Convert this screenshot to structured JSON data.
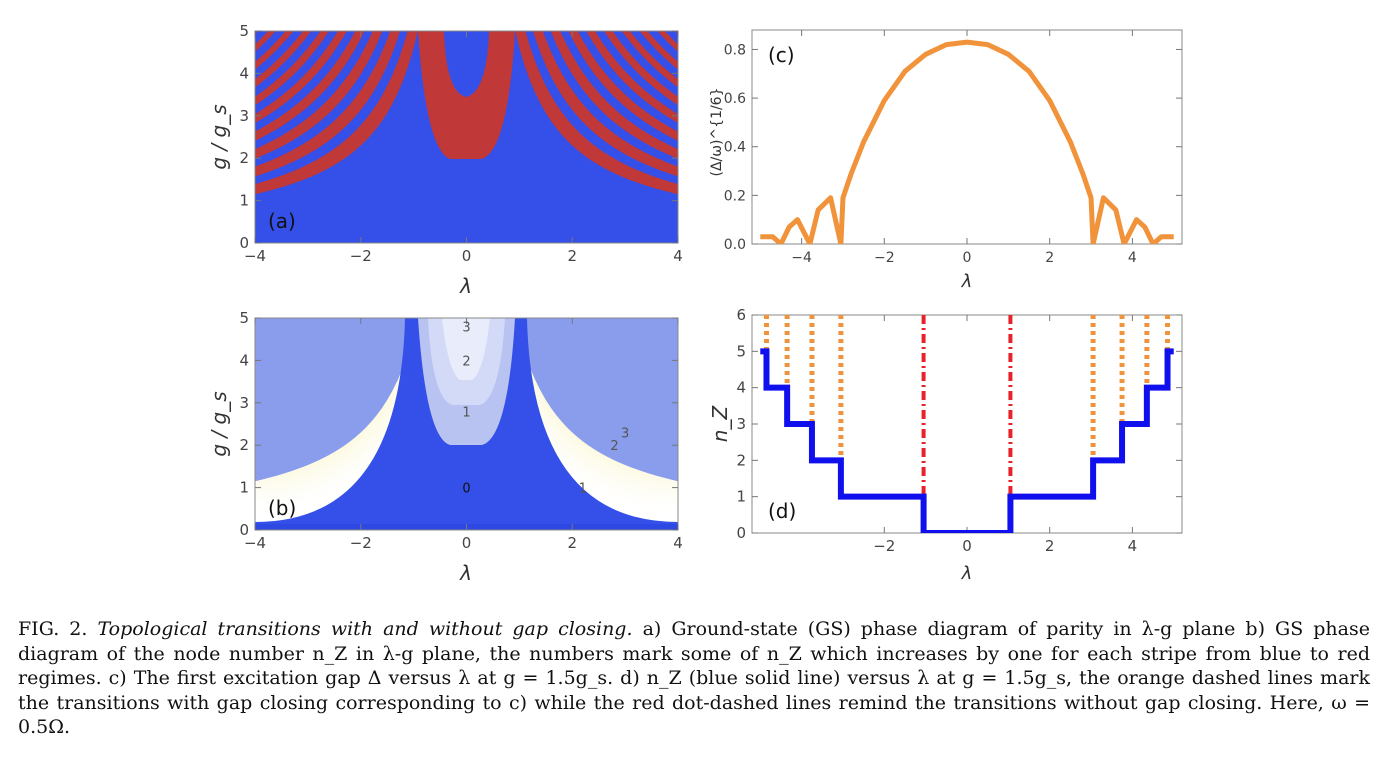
{
  "figure": {
    "panels": {
      "a": {
        "label": "(a)",
        "xlabel": "λ",
        "ylabel": "g / g_s",
        "xticks": [
          "−4",
          "−2",
          "0",
          "2",
          "4"
        ],
        "yticks": [
          "0",
          "1",
          "2",
          "3",
          "4",
          "5"
        ]
      },
      "b": {
        "label": "(b)",
        "xlabel": "λ",
        "ylabel": "g / g_s",
        "xticks": [
          "−4",
          "−2",
          "0",
          "2",
          "4"
        ],
        "yticks": [
          "0",
          "1",
          "2",
          "3",
          "4",
          "5"
        ],
        "contour_labels": [
          "3",
          "2",
          "1",
          "0",
          "1",
          "2",
          "3"
        ]
      },
      "c": {
        "label": "(c)",
        "xlabel": "λ",
        "ylabel": "(Δ/ω)^{1/6}",
        "xticks": [
          "−4",
          "−2",
          "0",
          "2",
          "4"
        ],
        "yticks": [
          "0.0",
          "0.2",
          "0.4",
          "0.6",
          "0.8"
        ]
      },
      "d": {
        "label": "(d)",
        "xlabel": "λ",
        "ylabel": "n_Z",
        "xticks": [
          "−2",
          "0",
          "2",
          "4"
        ],
        "yticks": [
          "0",
          "1",
          "2",
          "3",
          "4",
          "5",
          "6"
        ]
      }
    },
    "colors": {
      "parity_blue": "#3550e8",
      "parity_red": "#c03838",
      "gap_orange": "#f0933a",
      "nz_blue": "#1010ee",
      "red_dotdash": "#e8222a"
    }
  },
  "chart_data": [
    {
      "type": "heatmap",
      "panel": "a",
      "xlim": [
        -4,
        4
      ],
      "ylim": [
        0,
        5
      ],
      "xlabel": "λ",
      "ylabel": "g / g_s",
      "categories": [
        "blue",
        "red"
      ]
    },
    {
      "type": "heatmap",
      "panel": "b",
      "xlim": [
        -4,
        4
      ],
      "ylim": [
        0,
        5
      ],
      "xlabel": "λ",
      "ylabel": "g / g_s",
      "contour_labels": [
        {
          "text": "3",
          "x": 0,
          "y": 4.8
        },
        {
          "text": "2",
          "x": 0,
          "y": 4.0
        },
        {
          "text": "1",
          "x": 0,
          "y": 2.8
        },
        {
          "text": "0",
          "x": 0,
          "y": 1.0
        },
        {
          "text": "1",
          "x": 2.2,
          "y": 1.0
        },
        {
          "text": "2",
          "x": 2.8,
          "y": 2.0
        },
        {
          "text": "3",
          "x": 3.0,
          "y": 2.3
        }
      ]
    },
    {
      "type": "line",
      "panel": "c",
      "xlim": [
        -5.2,
        5.2
      ],
      "ylim": [
        0,
        0.88
      ],
      "xlabel": "λ",
      "ylabel": "(Δ/ω)^{1/6}",
      "x": [
        -5.0,
        -4.7,
        -4.5,
        -4.3,
        -4.1,
        -3.8,
        -3.6,
        -3.3,
        -3.05,
        -3.0,
        -2.8,
        -2.5,
        -2.0,
        -1.5,
        -1.0,
        -0.5,
        0.0,
        0.5,
        1.0,
        1.5,
        2.0,
        2.5,
        2.8,
        3.0,
        3.05,
        3.3,
        3.6,
        3.8,
        4.1,
        4.3,
        4.5,
        4.7,
        5.0
      ],
      "y": [
        0.03,
        0.03,
        0.0,
        0.07,
        0.1,
        0.0,
        0.14,
        0.19,
        0.0,
        0.19,
        0.29,
        0.42,
        0.59,
        0.71,
        0.78,
        0.82,
        0.83,
        0.82,
        0.78,
        0.71,
        0.59,
        0.42,
        0.29,
        0.19,
        0.0,
        0.19,
        0.14,
        0.0,
        0.1,
        0.07,
        0.0,
        0.03,
        0.03
      ]
    },
    {
      "type": "line",
      "panel": "d",
      "xlim": [
        -5.2,
        5.2
      ],
      "ylim": [
        0,
        6
      ],
      "xlabel": "λ",
      "ylabel": "n_Z",
      "x": [
        -5.0,
        -4.85,
        -4.85,
        -4.35,
        -4.35,
        -3.75,
        -3.75,
        -3.05,
        -3.05,
        -1.05,
        -1.05,
        1.05,
        1.05,
        3.05,
        3.05,
        3.75,
        3.75,
        4.35,
        4.35,
        4.85,
        4.85,
        5.0
      ],
      "y": [
        5,
        5,
        4,
        4,
        3,
        3,
        2,
        2,
        1,
        1,
        0,
        0,
        1,
        1,
        2,
        2,
        3,
        3,
        4,
        4,
        5,
        5
      ],
      "gap_closing_transitions": [
        -4.85,
        -4.35,
        -3.75,
        -3.05,
        3.05,
        3.75,
        4.35,
        4.85
      ],
      "no_gap_closing_transitions": [
        -1.05,
        1.05
      ]
    }
  ],
  "caption": {
    "fig": "FIG. 2.",
    "title": "Topological transitions with and without gap closing.",
    "text": "a) Ground-state (GS) phase diagram of parity in λ-g plane b) GS phase diagram of the node number n_Z in λ-g plane, the numbers mark some of n_Z which increases by one for each stripe from blue to red regimes. c) The first excitation gap Δ versus λ at g = 1.5g_s. d) n_Z (blue solid line) versus λ at g = 1.5g_s, the orange dashed lines mark the transitions with gap closing corresponding to c) while the red dot-dashed lines remind the transitions without gap closing. Here, ω = 0.5Ω."
  }
}
